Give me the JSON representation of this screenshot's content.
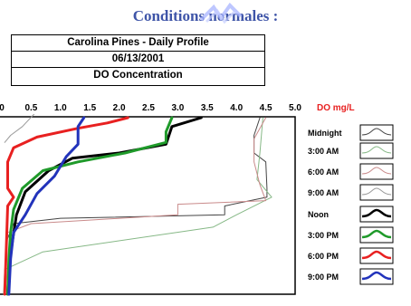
{
  "heading": "Conditions normales :",
  "chart_data": {
    "type": "line",
    "title": "Carolina Pines - Daily Profile",
    "subtitle": "06/13/2001",
    "xlabel": "DO Concentration",
    "xunit": "DO mg/L",
    "xlim": [
      0,
      5.0
    ],
    "xticks": [
      "0",
      "0.5",
      "1.0",
      "1.5",
      "2.0",
      "2.5",
      "3.0",
      "3.5",
      "4.0",
      "4.5",
      "5.0"
    ],
    "grid": false,
    "legend_position": "right",
    "series": [
      {
        "name": "Midnight",
        "color": "#444444",
        "width": 1,
        "points": [
          [
            4.4,
            0.0
          ],
          [
            4.3,
            0.1
          ],
          [
            4.3,
            0.2
          ],
          [
            4.5,
            0.25
          ],
          [
            4.52,
            0.4
          ],
          [
            4.52,
            0.45
          ],
          [
            3.8,
            0.5
          ],
          [
            3.8,
            0.55
          ],
          [
            1.0,
            0.57
          ],
          [
            0.2,
            0.6
          ],
          [
            0.08,
            0.7
          ],
          [
            0.05,
            1.0
          ]
        ]
      },
      {
        "name": "3:00 AM",
        "color": "#86b886",
        "width": 1,
        "points": [
          [
            4.45,
            0.0
          ],
          [
            4.4,
            0.2
          ],
          [
            4.35,
            0.35
          ],
          [
            4.6,
            0.45
          ],
          [
            4.0,
            0.55
          ],
          [
            3.6,
            0.62
          ],
          [
            0.7,
            0.76
          ],
          [
            0.05,
            0.86
          ],
          [
            0.03,
            1.0
          ]
        ]
      },
      {
        "name": "6:00 AM",
        "color": "#c98a8a",
        "width": 1,
        "points": [
          [
            4.5,
            0.0
          ],
          [
            4.3,
            0.12
          ],
          [
            4.3,
            0.25
          ],
          [
            4.4,
            0.38
          ],
          [
            4.5,
            0.47
          ],
          [
            3.0,
            0.49
          ],
          [
            3.0,
            0.55
          ],
          [
            0.5,
            0.6
          ],
          [
            0.1,
            0.65
          ],
          [
            0.05,
            1.0
          ]
        ]
      },
      {
        "name": "9:00 AM",
        "color": "#9a9a9a",
        "width": 1,
        "points": [
          [
            0.55,
            -0.02
          ],
          [
            0.35,
            0.05
          ],
          [
            0.15,
            0.1
          ],
          [
            0.05,
            0.14
          ]
        ]
      },
      {
        "name": "Noon",
        "color": "#000000",
        "width": 3,
        "points": [
          [
            3.4,
            0.0
          ],
          [
            2.9,
            0.05
          ],
          [
            2.8,
            0.15
          ],
          [
            2.0,
            0.2
          ],
          [
            1.2,
            0.23
          ],
          [
            0.8,
            0.3
          ],
          [
            0.4,
            0.42
          ],
          [
            0.25,
            0.55
          ],
          [
            0.18,
            0.7
          ],
          [
            0.12,
            0.85
          ],
          [
            0.1,
            1.0
          ]
        ]
      },
      {
        "name": "3:00 PM",
        "color": "#1f9a2a",
        "width": 3,
        "points": [
          [
            2.9,
            0.0
          ],
          [
            2.8,
            0.08
          ],
          [
            2.8,
            0.14
          ],
          [
            2.1,
            0.2
          ],
          [
            1.3,
            0.25
          ],
          [
            0.7,
            0.3
          ],
          [
            0.35,
            0.4
          ],
          [
            0.2,
            0.52
          ],
          [
            0.15,
            0.65
          ],
          [
            0.12,
            0.8
          ],
          [
            0.1,
            1.0
          ]
        ]
      },
      {
        "name": "6:00 PM",
        "color": "#e82020",
        "width": 3,
        "points": [
          [
            2.15,
            0.0
          ],
          [
            1.8,
            0.03
          ],
          [
            1.3,
            0.06
          ],
          [
            0.6,
            0.11
          ],
          [
            0.2,
            0.17
          ],
          [
            0.1,
            0.25
          ],
          [
            0.1,
            0.4
          ],
          [
            0.2,
            0.45
          ],
          [
            0.1,
            0.5
          ],
          [
            0.08,
            0.7
          ],
          [
            0.05,
            1.0
          ]
        ]
      },
      {
        "name": "9:00 PM",
        "color": "#2233bb",
        "width": 3,
        "points": [
          [
            1.4,
            0.0
          ],
          [
            1.3,
            0.05
          ],
          [
            1.3,
            0.15
          ],
          [
            1.1,
            0.22
          ],
          [
            0.9,
            0.33
          ],
          [
            0.6,
            0.43
          ],
          [
            0.4,
            0.55
          ],
          [
            0.2,
            0.65
          ],
          [
            0.15,
            0.8
          ],
          [
            0.12,
            1.0
          ]
        ]
      }
    ]
  }
}
